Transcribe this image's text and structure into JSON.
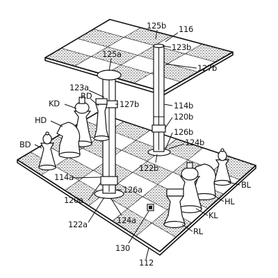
{
  "figure": {
    "labels": {
      "l125b": "125b",
      "l116": "116",
      "l123b": "123b",
      "l125a": "125a",
      "l127b_top": "127b",
      "l123a": "123a",
      "lRD": "RD",
      "lKD": "KD",
      "l127b_mid": "127b",
      "l114b": "114b",
      "lHD": "HD",
      "l120b": "120b",
      "l126b": "126b",
      "lBD": "BD",
      "l124b": "124b",
      "l122b": "122b",
      "l114a": "114a",
      "l126a": "126a",
      "l120a": "120a",
      "lBL": "BL",
      "lHL": "HL",
      "l122a": "122a",
      "l124a": "124a",
      "lKL": "KL",
      "lRL": "RL",
      "l130": "130",
      "l112": "112"
    }
  }
}
